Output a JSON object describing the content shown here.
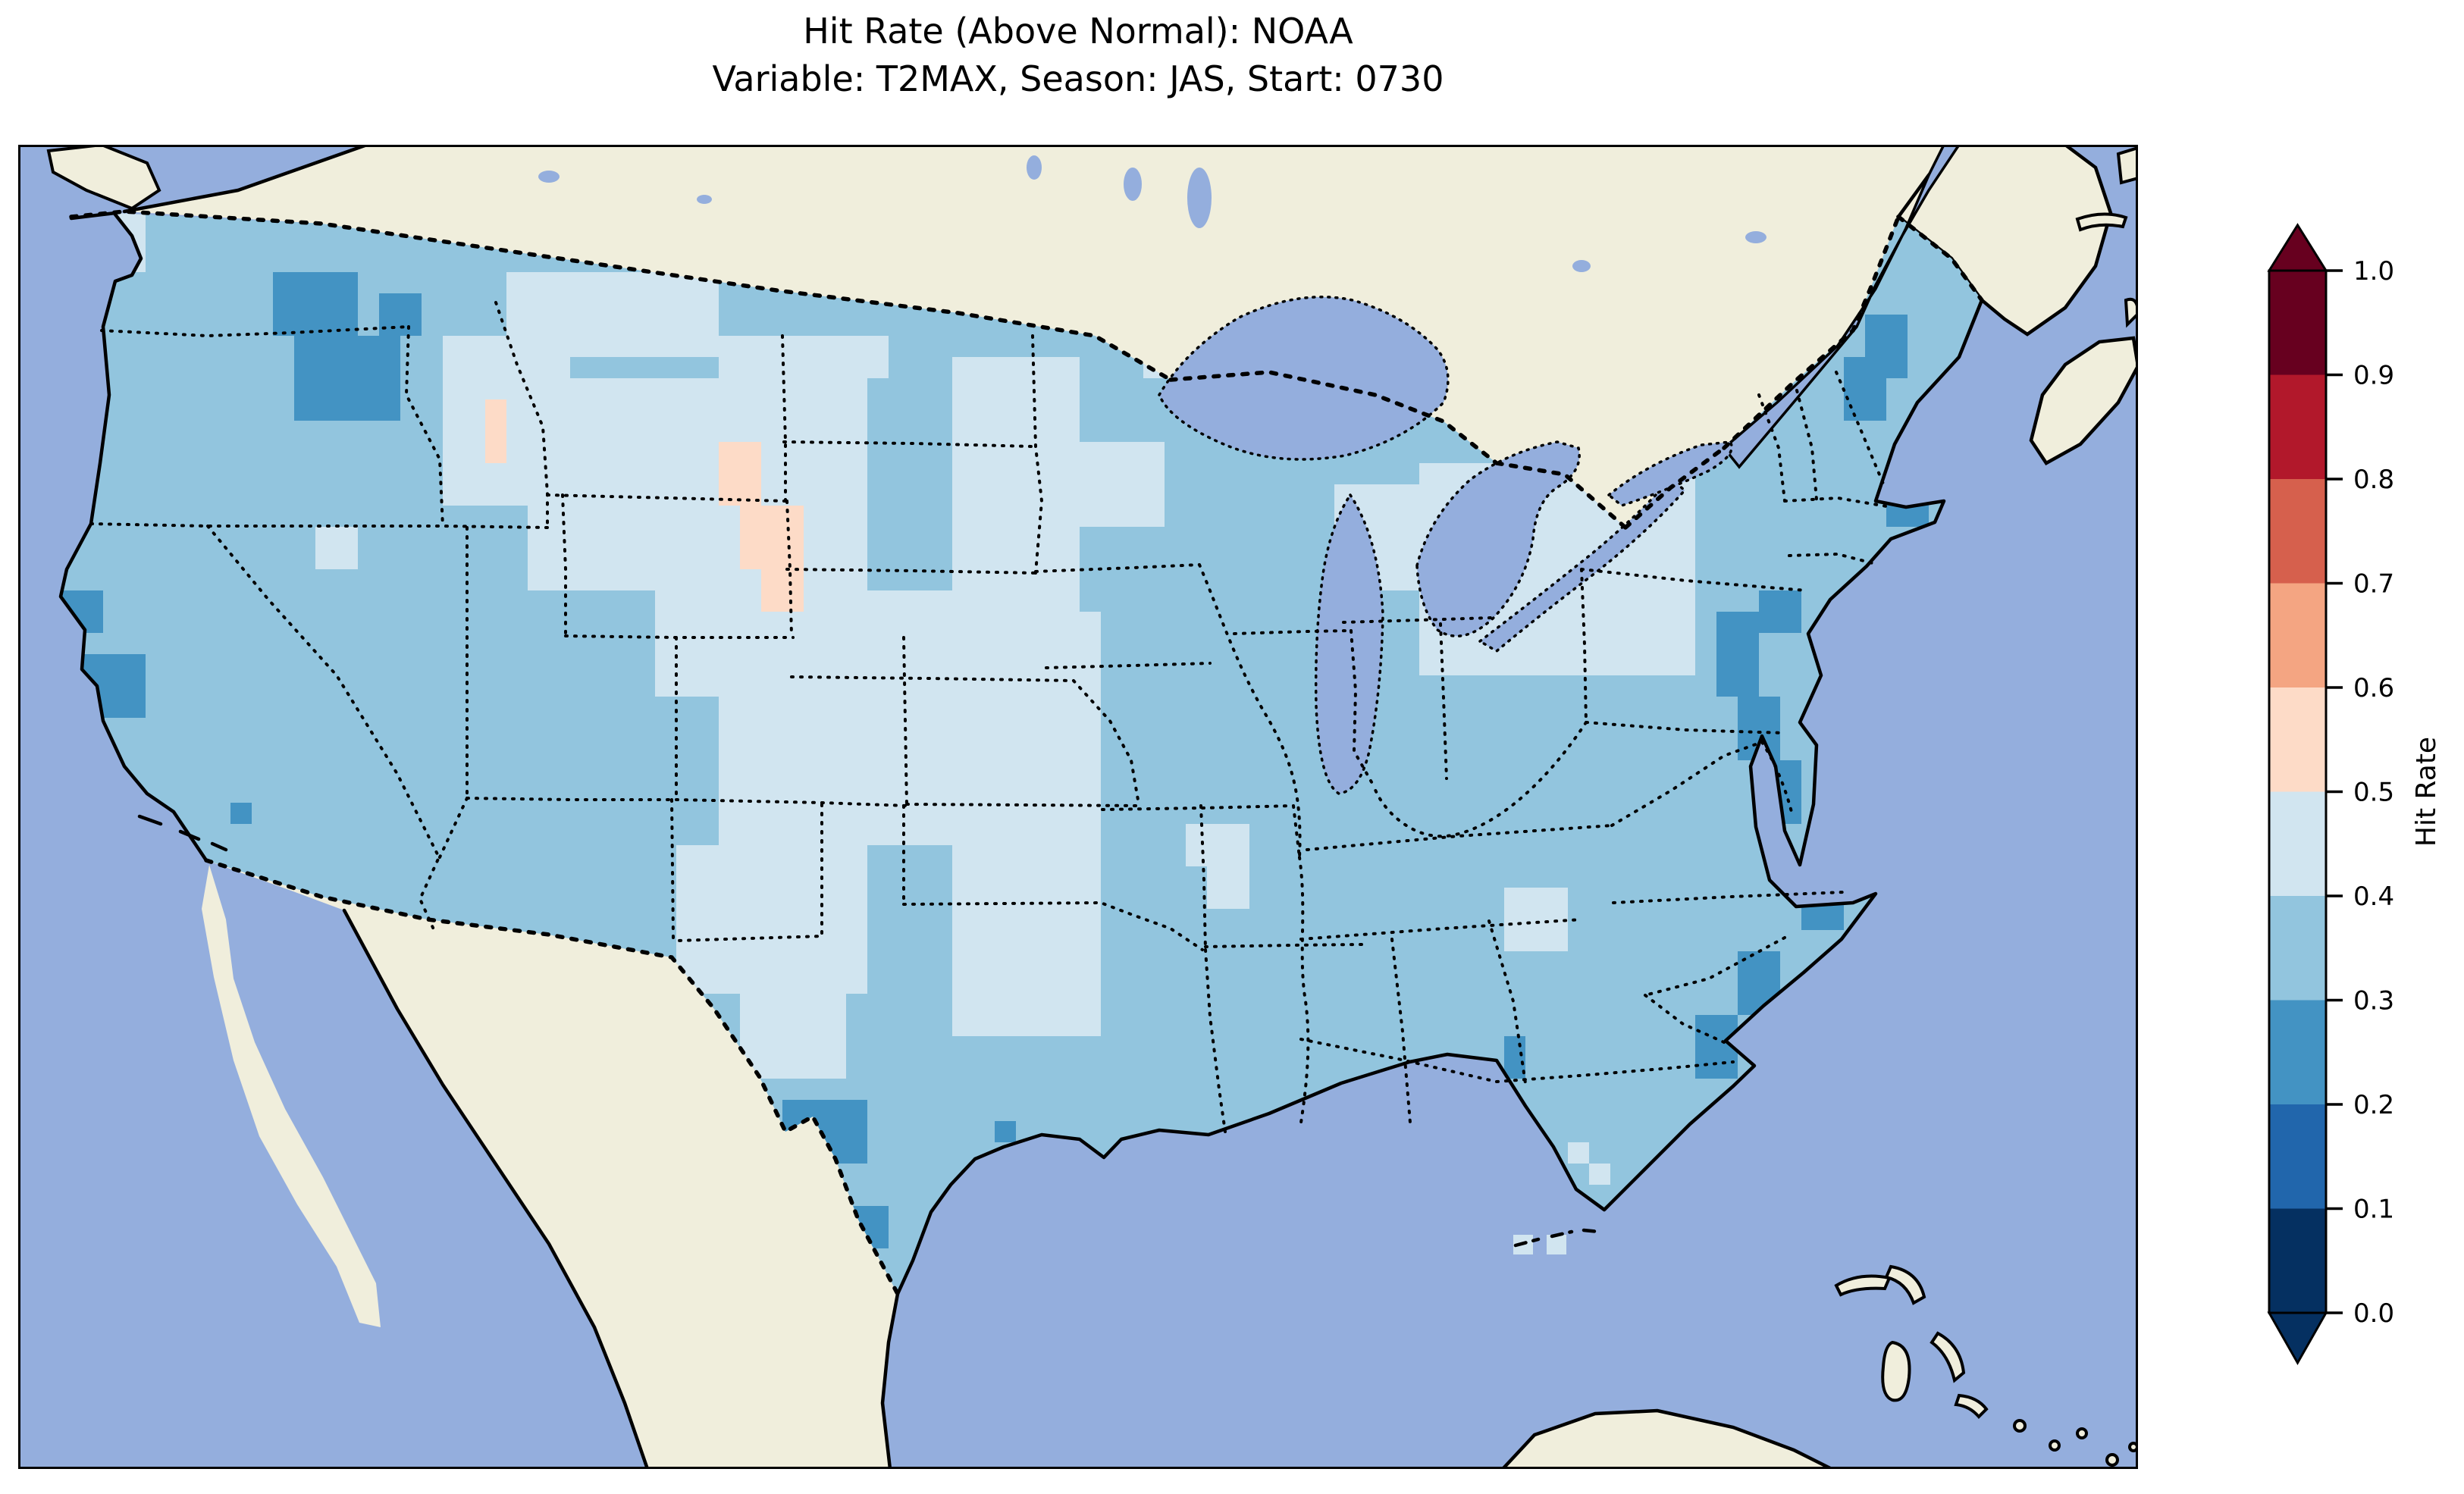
{
  "title": {
    "line1": "Hit Rate (Above Normal): NOAA",
    "line2": "Variable: T2MAX, Season: JAS, Start: 0730"
  },
  "colorbar": {
    "label": "Hit Rate",
    "tick_labels": [
      "1.0",
      "0.9",
      "0.8",
      "0.7",
      "0.6",
      "0.5",
      "0.4",
      "0.3",
      "0.2",
      "0.1",
      "0.0"
    ],
    "extend": "both"
  },
  "map": {
    "ocean_color": "#94aedd",
    "lake_color": "#94aedd",
    "land_color": "#f0eedc",
    "coast_color": "#000000",
    "frame_color": "#000000"
  },
  "chart_data": {
    "type": "heatmap",
    "title": "Hit Rate (Above Normal): NOAA",
    "subtitle": "Variable: T2MAX, Season: JAS, Start: 0730",
    "colorbar_label": "Hit Rate",
    "colormap": "RdBu_r, 10 discrete bins, extended arrows both ends",
    "levels": [
      0.0,
      0.1,
      0.2,
      0.3,
      0.4,
      0.5,
      0.6,
      0.7,
      0.8,
      0.9,
      1.0
    ],
    "colors": [
      "#053061",
      "#2166ac",
      "#4393c3",
      "#92c5de",
      "#d1e5f0",
      "#fddbc7",
      "#f4a582",
      "#d6604d",
      "#b2182b",
      "#67001f"
    ],
    "legend_position": "right",
    "geography": "CONUS gridded hit-rate map (approx. 0.5-deg cells); most of CONUS 0.3-0.4; large pale 0.4-0.5 region over northern/central plains, upper Midwest, Ohio Valley and Mid-Atlantic interior; small 0.5-0.6 (pink) cells over MT/WY border, western SD/NE, northern MN, Great Lakes and northern NY; 0.2-0.3 patches over eastern WA/ID, N. California coast, central Texas, Carolinas-Georgia coast, Chesapeake/NJ and NH/ME coast",
    "base_value": 0.35,
    "cell_size_px": 28,
    "patches_format": [
      "col",
      "row",
      "w",
      "h",
      "value"
    ],
    "patches": [
      [
        4,
        3,
        2,
        3,
        0.45
      ],
      [
        20,
        9,
        6,
        8,
        0.45
      ],
      [
        23,
        6,
        10,
        4,
        0.45
      ],
      [
        33,
        9,
        8,
        2,
        0.45
      ],
      [
        21,
        11,
        19,
        5,
        0.45
      ],
      [
        24,
        16,
        16,
        5,
        0.45
      ],
      [
        30,
        21,
        17,
        5,
        0.45
      ],
      [
        33,
        26,
        14,
        7,
        0.45
      ],
      [
        31,
        33,
        9,
        7,
        0.45
      ],
      [
        34,
        40,
        5,
        4,
        0.45
      ],
      [
        44,
        10,
        6,
        12,
        0.45
      ],
      [
        43,
        22,
        8,
        9,
        0.45
      ],
      [
        44,
        31,
        7,
        11,
        0.45
      ],
      [
        50,
        14,
        4,
        4,
        0.45
      ],
      [
        53,
        9,
        3,
        2,
        0.45
      ],
      [
        62,
        16,
        4,
        5,
        0.45
      ],
      [
        66,
        15,
        13,
        10,
        0.45
      ],
      [
        55,
        32,
        3,
        2,
        0.45
      ],
      [
        56,
        34,
        2,
        2,
        0.45
      ],
      [
        70,
        35,
        3,
        3,
        0.45
      ],
      [
        73,
        47,
        1,
        1,
        0.45
      ],
      [
        74,
        48,
        1,
        1,
        0.45
      ],
      [
        14,
        18,
        2,
        2,
        0.45
      ],
      [
        22,
        12,
        1,
        3,
        0.55
      ],
      [
        33,
        14,
        2,
        3,
        0.55
      ],
      [
        34,
        17,
        3,
        3,
        0.55
      ],
      [
        35,
        20,
        2,
        2,
        0.55
      ],
      [
        53,
        8,
        1,
        1,
        0.55
      ],
      [
        56,
        10,
        1,
        1,
        0.55
      ],
      [
        76,
        13,
        1,
        1,
        0.55
      ],
      [
        12,
        6,
        4,
        3,
        0.25
      ],
      [
        13,
        9,
        5,
        4,
        0.25
      ],
      [
        17,
        7,
        2,
        2,
        0.25
      ],
      [
        2,
        21,
        2,
        2,
        0.25
      ],
      [
        3,
        24,
        3,
        3,
        0.25
      ],
      [
        10,
        31,
        1,
        1,
        0.25
      ],
      [
        36,
        45,
        4,
        3,
        0.25
      ],
      [
        38,
        50,
        3,
        2,
        0.25
      ],
      [
        46,
        46,
        1,
        1,
        0.25
      ],
      [
        70,
        42,
        1,
        2,
        0.25
      ],
      [
        79,
        41,
        2,
        3,
        0.25
      ],
      [
        81,
        38,
        2,
        3,
        0.25
      ],
      [
        84,
        34,
        2,
        3,
        0.25
      ],
      [
        86,
        33,
        2,
        2,
        0.25
      ],
      [
        80,
        22,
        2,
        4,
        0.25
      ],
      [
        81,
        26,
        2,
        3,
        0.25
      ],
      [
        82,
        29,
        2,
        3,
        0.25
      ],
      [
        82,
        21,
        2,
        2,
        0.25
      ],
      [
        86,
        10,
        2,
        3,
        0.25
      ],
      [
        87,
        8,
        2,
        3,
        0.25
      ],
      [
        88,
        16,
        2,
        2,
        0.25
      ]
    ],
    "offshore_cells": [
      [
        1972,
        1438,
        0.45
      ],
      [
        2016,
        1438,
        0.45
      ]
    ]
  }
}
